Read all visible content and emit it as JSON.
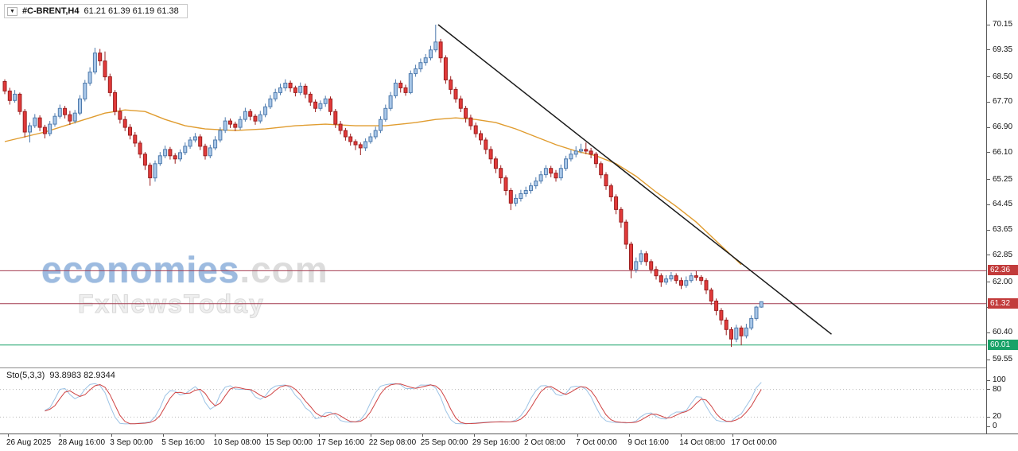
{
  "header": {
    "dropdown_icon": "▼",
    "symbol": "#C-BRENT,H4",
    "ohlc": "61.21 61.39 61.19 61.38"
  },
  "watermark": {
    "brand_main": "economies",
    "brand_suffix": ".com",
    "brand_sub": "FxNewsToday"
  },
  "indicator_panel": {
    "label": "Sto(5,3,3)",
    "values": "93.8983 82.9344"
  },
  "colors": {
    "background": "#ffffff",
    "candle_up_fill": "#a9c7e8",
    "candle_up_border": "#4f7bad",
    "candle_down_fill": "#e23a3a",
    "candle_down_border": "#9c1f1f",
    "ma_line": "#e09c2f",
    "trendline": "#1a1a1a",
    "level_red_line": "#a23a4e",
    "level_red_badge": "#c23b3b",
    "level_green_line": "#18a268",
    "level_green_badge": "#18a268",
    "sto_k": "#9cc3e5",
    "sto_d": "#cf4343",
    "sto_level": "#bbbbbb"
  },
  "chart_data": {
    "type": "candlestick",
    "symbol": "#C-BRENT",
    "timeframe": "H4",
    "quote": {
      "open": 61.21,
      "high": 61.39,
      "low": 61.19,
      "close": 61.38
    },
    "ylim": [
      59.3,
      70.95
    ],
    "grid": false,
    "y_ticks": [
      70.15,
      69.35,
      68.5,
      67.7,
      66.9,
      66.1,
      65.25,
      64.45,
      63.65,
      62.85,
      62.0,
      61.2,
      60.4,
      59.55
    ],
    "x_labels": [
      "26 Aug 2025",
      "28 Aug 16:00",
      "3 Sep 00:00",
      "5 Sep 16:00",
      "10 Sep 08:00",
      "15 Sep 00:00",
      "17 Sep 16:00",
      "22 Sep 08:00",
      "25 Sep 00:00",
      "29 Sep 16:00",
      "2 Oct 08:00",
      "7 Oct 00:00",
      "9 Oct 16:00",
      "14 Oct 08:00",
      "17 Oct 00:00"
    ],
    "candles": [
      [
        68.35,
        68.42,
        67.95,
        68.05
      ],
      [
        68.05,
        68.15,
        67.62,
        67.75
      ],
      [
        67.75,
        68.08,
        67.68,
        67.95
      ],
      [
        67.95,
        68.0,
        67.3,
        67.4
      ],
      [
        67.4,
        67.48,
        66.58,
        66.75
      ],
      [
        66.75,
        67.05,
        66.42,
        66.95
      ],
      [
        66.95,
        67.32,
        66.88,
        67.2
      ],
      [
        67.2,
        67.28,
        66.78,
        66.9
      ],
      [
        66.9,
        66.98,
        66.55,
        66.7
      ],
      [
        66.7,
        67.1,
        66.62,
        67.0
      ],
      [
        67.0,
        67.35,
        66.92,
        67.25
      ],
      [
        67.25,
        67.62,
        67.18,
        67.5
      ],
      [
        67.5,
        67.58,
        67.18,
        67.3
      ],
      [
        67.3,
        67.42,
        66.98,
        67.1
      ],
      [
        67.1,
        67.45,
        67.02,
        67.35
      ],
      [
        67.35,
        67.92,
        67.28,
        67.8
      ],
      [
        67.8,
        68.4,
        67.72,
        68.3
      ],
      [
        68.3,
        68.8,
        68.22,
        68.65
      ],
      [
        68.65,
        69.42,
        68.58,
        69.25
      ],
      [
        69.25,
        69.38,
        68.85,
        69.0
      ],
      [
        69.0,
        69.3,
        68.38,
        68.5
      ],
      [
        68.5,
        68.6,
        67.88,
        68.0
      ],
      [
        68.0,
        68.08,
        67.28,
        67.4
      ],
      [
        67.4,
        67.52,
        67.02,
        67.15
      ],
      [
        67.15,
        67.25,
        66.78,
        66.9
      ],
      [
        66.9,
        67.0,
        66.52,
        66.65
      ],
      [
        66.65,
        66.75,
        66.28,
        66.4
      ],
      [
        66.4,
        66.48,
        65.92,
        66.05
      ],
      [
        66.05,
        66.12,
        65.55,
        65.7
      ],
      [
        65.7,
        65.78,
        65.05,
        65.3
      ],
      [
        65.3,
        65.85,
        65.18,
        65.75
      ],
      [
        65.75,
        66.12,
        65.68,
        66.0
      ],
      [
        66.0,
        66.32,
        65.92,
        66.2
      ],
      [
        66.2,
        66.28,
        65.88,
        66.0
      ],
      [
        66.0,
        66.08,
        65.75,
        65.9
      ],
      [
        65.9,
        66.2,
        65.82,
        66.1
      ],
      [
        66.1,
        66.42,
        66.02,
        66.3
      ],
      [
        66.3,
        66.6,
        66.22,
        66.5
      ],
      [
        66.5,
        66.72,
        66.42,
        66.6
      ],
      [
        66.6,
        66.68,
        66.18,
        66.3
      ],
      [
        66.3,
        66.38,
        65.88,
        66.0
      ],
      [
        66.0,
        66.35,
        65.92,
        66.25
      ],
      [
        66.25,
        66.62,
        66.18,
        66.5
      ],
      [
        66.5,
        66.9,
        66.42,
        66.8
      ],
      [
        66.8,
        67.22,
        66.72,
        67.1
      ],
      [
        67.1,
        67.18,
        66.88,
        67.0
      ],
      [
        67.0,
        67.08,
        66.78,
        66.9
      ],
      [
        66.9,
        67.25,
        66.82,
        67.15
      ],
      [
        67.15,
        67.52,
        67.08,
        67.4
      ],
      [
        67.4,
        67.48,
        67.12,
        67.25
      ],
      [
        67.25,
        67.32,
        66.98,
        67.1
      ],
      [
        67.1,
        67.42,
        67.02,
        67.3
      ],
      [
        67.3,
        67.65,
        67.22,
        67.55
      ],
      [
        67.55,
        67.92,
        67.48,
        67.8
      ],
      [
        67.8,
        68.12,
        67.72,
        68.0
      ],
      [
        68.0,
        68.28,
        67.92,
        68.15
      ],
      [
        68.15,
        68.42,
        68.05,
        68.3
      ],
      [
        68.3,
        68.38,
        68.02,
        68.15
      ],
      [
        68.15,
        68.22,
        67.88,
        68.0
      ],
      [
        68.0,
        68.32,
        67.92,
        68.2
      ],
      [
        68.2,
        68.28,
        67.82,
        67.95
      ],
      [
        67.95,
        68.02,
        67.58,
        67.7
      ],
      [
        67.7,
        67.78,
        67.38,
        67.5
      ],
      [
        67.5,
        67.75,
        67.42,
        67.65
      ],
      [
        67.65,
        67.9,
        67.55,
        67.8
      ],
      [
        67.8,
        67.88,
        67.28,
        67.4
      ],
      [
        67.4,
        67.48,
        66.88,
        67.0
      ],
      [
        67.0,
        67.1,
        66.68,
        66.8
      ],
      [
        66.8,
        66.88,
        66.48,
        66.6
      ],
      [
        66.6,
        66.7,
        66.32,
        66.45
      ],
      [
        66.45,
        66.52,
        66.18,
        66.35
      ],
      [
        66.35,
        66.42,
        66.02,
        66.25
      ],
      [
        66.25,
        66.55,
        66.15,
        66.45
      ],
      [
        66.45,
        66.72,
        66.38,
        66.6
      ],
      [
        66.6,
        66.92,
        66.52,
        66.8
      ],
      [
        66.8,
        67.25,
        66.72,
        67.15
      ],
      [
        67.15,
        67.62,
        67.08,
        67.5
      ],
      [
        67.5,
        68.02,
        67.42,
        67.9
      ],
      [
        67.9,
        68.42,
        67.82,
        68.3
      ],
      [
        68.3,
        68.38,
        68.0,
        68.15
      ],
      [
        68.15,
        68.25,
        67.9,
        68.0
      ],
      [
        68.0,
        68.7,
        67.95,
        68.6
      ],
      [
        68.6,
        68.88,
        68.5,
        68.75
      ],
      [
        68.75,
        69.08,
        68.65,
        68.95
      ],
      [
        68.95,
        69.22,
        68.85,
        69.1
      ],
      [
        69.1,
        69.48,
        69.02,
        69.35
      ],
      [
        69.35,
        70.15,
        69.28,
        69.6
      ],
      [
        69.6,
        69.7,
        68.95,
        69.1
      ],
      [
        69.1,
        69.18,
        68.28,
        68.4
      ],
      [
        68.4,
        68.52,
        67.95,
        68.1
      ],
      [
        68.1,
        68.18,
        67.68,
        67.8
      ],
      [
        67.8,
        67.9,
        67.38,
        67.5
      ],
      [
        67.5,
        67.58,
        67.05,
        67.2
      ],
      [
        67.2,
        67.3,
        66.82,
        66.95
      ],
      [
        66.95,
        67.05,
        66.58,
        66.7
      ],
      [
        66.7,
        66.8,
        66.35,
        66.5
      ],
      [
        66.5,
        66.58,
        66.05,
        66.2
      ],
      [
        66.2,
        66.3,
        65.75,
        65.9
      ],
      [
        65.9,
        65.98,
        65.45,
        65.6
      ],
      [
        65.6,
        65.7,
        65.12,
        65.3
      ],
      [
        65.3,
        65.38,
        64.75,
        64.9
      ],
      [
        64.9,
        64.98,
        64.28,
        64.5
      ],
      [
        64.5,
        64.78,
        64.4,
        64.65
      ],
      [
        64.65,
        64.92,
        64.55,
        64.8
      ],
      [
        64.8,
        65.02,
        64.7,
        64.9
      ],
      [
        64.9,
        65.15,
        64.8,
        65.05
      ],
      [
        65.05,
        65.32,
        64.95,
        65.2
      ],
      [
        65.2,
        65.52,
        65.12,
        65.4
      ],
      [
        65.4,
        65.7,
        65.3,
        65.6
      ],
      [
        65.6,
        65.68,
        65.32,
        65.45
      ],
      [
        65.45,
        65.55,
        65.18,
        65.3
      ],
      [
        65.3,
        65.72,
        65.22,
        65.6
      ],
      [
        65.6,
        66.0,
        65.52,
        65.9
      ],
      [
        65.9,
        66.18,
        65.82,
        66.05
      ],
      [
        66.05,
        66.3,
        65.95,
        66.15
      ],
      [
        66.15,
        66.38,
        66.08,
        66.2
      ],
      [
        66.2,
        66.42,
        66.05,
        66.15
      ],
      [
        66.15,
        66.25,
        65.92,
        66.05
      ],
      [
        66.05,
        66.12,
        65.62,
        65.75
      ],
      [
        65.75,
        65.82,
        65.28,
        65.4
      ],
      [
        65.4,
        65.48,
        64.92,
        65.05
      ],
      [
        65.05,
        65.12,
        64.55,
        64.7
      ],
      [
        64.7,
        64.78,
        64.15,
        64.3
      ],
      [
        64.3,
        64.38,
        63.72,
        63.9
      ],
      [
        63.9,
        63.98,
        63.05,
        63.2
      ],
      [
        63.2,
        63.28,
        62.12,
        62.4
      ],
      [
        62.4,
        62.78,
        62.3,
        62.65
      ],
      [
        62.65,
        63.02,
        62.55,
        62.9
      ],
      [
        62.9,
        62.98,
        62.52,
        62.65
      ],
      [
        62.65,
        62.72,
        62.28,
        62.4
      ],
      [
        62.4,
        62.5,
        62.08,
        62.2
      ],
      [
        62.2,
        62.28,
        61.85,
        62.0
      ],
      [
        62.0,
        62.22,
        61.92,
        62.1
      ],
      [
        62.1,
        62.32,
        62.02,
        62.2
      ],
      [
        62.2,
        62.28,
        61.95,
        62.05
      ],
      [
        62.05,
        62.15,
        61.78,
        61.9
      ],
      [
        61.9,
        62.18,
        61.82,
        62.05
      ],
      [
        62.05,
        62.3,
        61.98,
        62.2
      ],
      [
        62.2,
        62.35,
        62.05,
        62.15
      ],
      [
        62.15,
        62.22,
        61.92,
        62.05
      ],
      [
        62.05,
        62.12,
        61.62,
        61.75
      ],
      [
        61.75,
        61.82,
        61.28,
        61.4
      ],
      [
        61.4,
        61.48,
        60.95,
        61.1
      ],
      [
        61.1,
        61.18,
        60.65,
        60.8
      ],
      [
        60.8,
        60.88,
        60.32,
        60.5
      ],
      [
        60.5,
        60.58,
        59.95,
        60.2
      ],
      [
        60.2,
        60.65,
        60.1,
        60.55
      ],
      [
        60.55,
        60.62,
        60.0,
        60.3
      ],
      [
        60.3,
        60.68,
        60.22,
        60.55
      ],
      [
        60.55,
        60.95,
        60.48,
        60.85
      ],
      [
        60.85,
        61.25,
        60.78,
        61.21
      ],
      [
        61.21,
        61.39,
        61.19,
        61.38
      ]
    ],
    "ma": {
      "label": "moving-average",
      "points": [
        [
          0,
          66.45
        ],
        [
          8,
          66.75
        ],
        [
          14,
          67.05
        ],
        [
          20,
          67.35
        ],
        [
          24,
          67.45
        ],
        [
          28,
          67.4
        ],
        [
          32,
          67.15
        ],
        [
          36,
          66.95
        ],
        [
          40,
          66.85
        ],
        [
          46,
          66.8
        ],
        [
          52,
          66.85
        ],
        [
          58,
          66.95
        ],
        [
          64,
          67.0
        ],
        [
          70,
          66.95
        ],
        [
          76,
          66.95
        ],
        [
          82,
          67.05
        ],
        [
          86,
          67.15
        ],
        [
          90,
          67.2
        ],
        [
          94,
          67.15
        ],
        [
          98,
          67.05
        ],
        [
          102,
          66.85
        ],
        [
          106,
          66.6
        ],
        [
          110,
          66.35
        ],
        [
          114,
          66.15
        ],
        [
          118,
          66.0
        ],
        [
          122,
          65.75
        ],
        [
          126,
          65.35
        ],
        [
          130,
          64.85
        ],
        [
          134,
          64.4
        ],
        [
          138,
          63.9
        ],
        [
          142,
          63.3
        ],
        [
          145,
          62.85
        ],
        [
          147,
          62.55
        ]
      ]
    },
    "trendline": {
      "points": [
        [
          86.5,
          70.15
        ],
        [
          165,
          60.35
        ]
      ]
    },
    "levels": [
      {
        "value": 62.36,
        "label": "62.36",
        "kind": "resistance",
        "color": "red"
      },
      {
        "value": 61.32,
        "label": "61.32",
        "kind": "resistance",
        "color": "red"
      },
      {
        "value": 60.01,
        "label": "60.01",
        "kind": "support",
        "color": "green"
      }
    ],
    "stochastic": {
      "label": "Sto(5,3,3)",
      "k_period": 5,
      "slowing": 3,
      "d_period": 3,
      "last_k": 93.8983,
      "last_d": 82.9344,
      "axis_ticks": [
        100,
        80,
        20,
        0
      ],
      "levels": [
        80,
        20
      ]
    }
  }
}
